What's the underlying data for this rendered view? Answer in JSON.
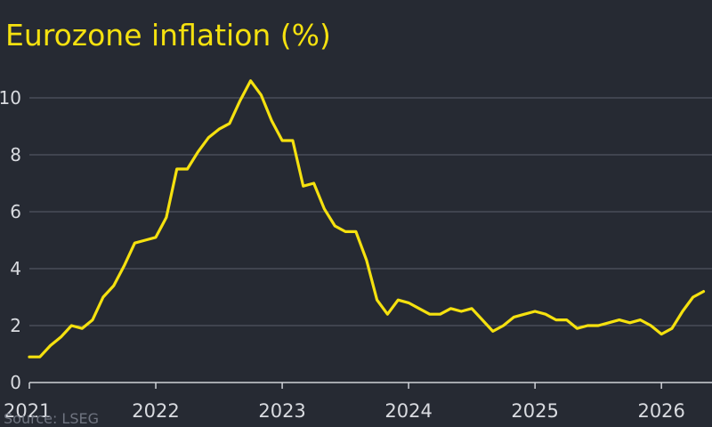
{
  "chart_data": {
    "type": "line",
    "title": "Eurozone inflation (%)",
    "source": "Source: LSEG",
    "ylim": [
      0,
      11.5
    ],
    "y_ticks": [
      0,
      2,
      4,
      6,
      8,
      10
    ],
    "x_ticks": [
      2021,
      2022,
      2023,
      2024,
      2025,
      2026
    ],
    "grid": true,
    "colors": {
      "line": "#f5e10f",
      "background": "#262a33",
      "grid": "#5a5f6b",
      "text": "#d9dbe0"
    },
    "series": [
      {
        "x": [
          "2021-01",
          "2021-02",
          "2021-03",
          "2021-04",
          "2021-05",
          "2021-06",
          "2021-07",
          "2021-08",
          "2021-09",
          "2021-10",
          "2021-11",
          "2021-12",
          "2022-01",
          "2022-02",
          "2022-03",
          "2022-04",
          "2022-05",
          "2022-06",
          "2022-07",
          "2022-08",
          "2022-09",
          "2022-10",
          "2022-11",
          "2022-12",
          "2023-01",
          "2023-02",
          "2023-03",
          "2023-04",
          "2023-05",
          "2023-06",
          "2023-07",
          "2023-08",
          "2023-09",
          "2023-10",
          "2023-11",
          "2023-12",
          "2024-01",
          "2024-02",
          "2024-03",
          "2024-04",
          "2024-05",
          "2024-06",
          "2024-07",
          "2024-08",
          "2024-09",
          "2024-10",
          "2024-11",
          "2024-12",
          "2025-01",
          "2025-02",
          "2025-03",
          "2025-04",
          "2025-05",
          "2025-06",
          "2025-07",
          "2025-08",
          "2025-09",
          "2025-10",
          "2025-11",
          "2025-12",
          "2026-01",
          "2026-02",
          "2026-03",
          "2026-04",
          "2026-05"
        ],
        "values": [
          0.9,
          0.9,
          1.3,
          1.6,
          2.0,
          1.9,
          2.2,
          3.0,
          3.4,
          4.1,
          4.9,
          5.0,
          5.1,
          5.8,
          7.5,
          7.5,
          8.1,
          8.6,
          8.9,
          9.1,
          9.9,
          10.6,
          10.1,
          9.2,
          8.5,
          8.5,
          6.9,
          7.0,
          6.1,
          5.5,
          5.3,
          5.3,
          4.3,
          2.9,
          2.4,
          2.9,
          2.8,
          2.6,
          2.4,
          2.4,
          2.6,
          2.5,
          2.6,
          2.2,
          1.8,
          2.0,
          2.3,
          2.4,
          2.5,
          2.4,
          2.2,
          2.2,
          1.9,
          2.0,
          2.0,
          2.1,
          2.2,
          2.1,
          2.2,
          2.0,
          1.7,
          1.9,
          2.5,
          3.0,
          3.2
        ]
      }
    ]
  }
}
